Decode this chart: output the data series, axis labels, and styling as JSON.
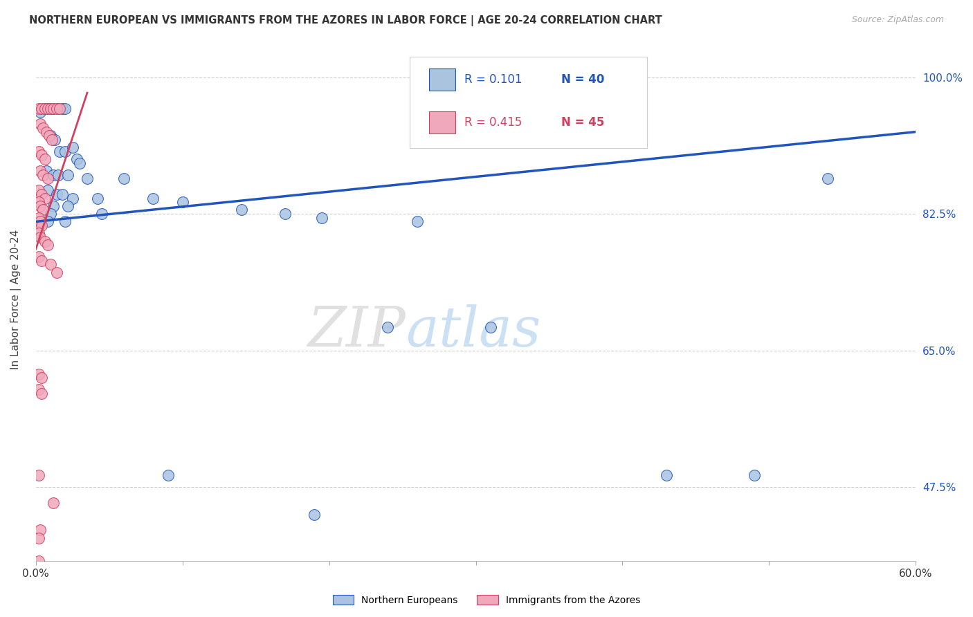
{
  "title": "NORTHERN EUROPEAN VS IMMIGRANTS FROM THE AZORES IN LABOR FORCE | AGE 20-24 CORRELATION CHART",
  "source": "Source: ZipAtlas.com",
  "ylabel": "In Labor Force | Age 20-24",
  "ytick_labels": [
    "100.0%",
    "82.5%",
    "65.0%",
    "47.5%"
  ],
  "ytick_values": [
    1.0,
    0.825,
    0.65,
    0.475
  ],
  "xmin": 0.0,
  "xmax": 0.6,
  "ymin": 0.38,
  "ymax": 1.05,
  "watermark": "ZIPatlas",
  "blue_color": "#aac4e0",
  "blue_line_color": "#2255bb",
  "pink_color": "#f0a8bc",
  "pink_line_color": "#d04060",
  "blue_scatter": [
    [
      0.003,
      0.955
    ],
    [
      0.006,
      0.96
    ],
    [
      0.008,
      0.96
    ],
    [
      0.01,
      0.96
    ],
    [
      0.012,
      0.96
    ],
    [
      0.015,
      0.96
    ],
    [
      0.018,
      0.96
    ],
    [
      0.02,
      0.96
    ],
    [
      0.01,
      0.925
    ],
    [
      0.013,
      0.92
    ],
    [
      0.016,
      0.905
    ],
    [
      0.02,
      0.905
    ],
    [
      0.025,
      0.91
    ],
    [
      0.028,
      0.895
    ],
    [
      0.03,
      0.89
    ],
    [
      0.007,
      0.88
    ],
    [
      0.012,
      0.875
    ],
    [
      0.015,
      0.875
    ],
    [
      0.022,
      0.875
    ],
    [
      0.035,
      0.87
    ],
    [
      0.06,
      0.87
    ],
    [
      0.008,
      0.855
    ],
    [
      0.014,
      0.85
    ],
    [
      0.018,
      0.85
    ],
    [
      0.025,
      0.845
    ],
    [
      0.042,
      0.845
    ],
    [
      0.08,
      0.845
    ],
    [
      0.012,
      0.835
    ],
    [
      0.022,
      0.835
    ],
    [
      0.1,
      0.84
    ],
    [
      0.01,
      0.825
    ],
    [
      0.045,
      0.825
    ],
    [
      0.14,
      0.83
    ],
    [
      0.008,
      0.815
    ],
    [
      0.02,
      0.815
    ],
    [
      0.17,
      0.825
    ],
    [
      0.195,
      0.82
    ],
    [
      0.26,
      0.815
    ],
    [
      0.24,
      0.68
    ],
    [
      0.31,
      0.68
    ],
    [
      0.43,
      0.49
    ],
    [
      0.09,
      0.49
    ],
    [
      0.19,
      0.44
    ],
    [
      0.49,
      0.49
    ],
    [
      0.54,
      0.87
    ]
  ],
  "pink_scatter": [
    [
      0.002,
      0.96
    ],
    [
      0.004,
      0.96
    ],
    [
      0.006,
      0.96
    ],
    [
      0.008,
      0.96
    ],
    [
      0.01,
      0.96
    ],
    [
      0.012,
      0.96
    ],
    [
      0.014,
      0.96
    ],
    [
      0.016,
      0.96
    ],
    [
      0.003,
      0.94
    ],
    [
      0.005,
      0.935
    ],
    [
      0.007,
      0.93
    ],
    [
      0.009,
      0.925
    ],
    [
      0.011,
      0.92
    ],
    [
      0.002,
      0.905
    ],
    [
      0.004,
      0.9
    ],
    [
      0.006,
      0.895
    ],
    [
      0.003,
      0.88
    ],
    [
      0.005,
      0.875
    ],
    [
      0.008,
      0.87
    ],
    [
      0.002,
      0.855
    ],
    [
      0.004,
      0.85
    ],
    [
      0.006,
      0.845
    ],
    [
      0.002,
      0.84
    ],
    [
      0.003,
      0.835
    ],
    [
      0.005,
      0.83
    ],
    [
      0.002,
      0.82
    ],
    [
      0.003,
      0.815
    ],
    [
      0.004,
      0.81
    ],
    [
      0.002,
      0.8
    ],
    [
      0.003,
      0.795
    ],
    [
      0.006,
      0.79
    ],
    [
      0.008,
      0.785
    ],
    [
      0.002,
      0.77
    ],
    [
      0.004,
      0.765
    ],
    [
      0.01,
      0.76
    ],
    [
      0.014,
      0.75
    ],
    [
      0.002,
      0.62
    ],
    [
      0.004,
      0.615
    ],
    [
      0.002,
      0.6
    ],
    [
      0.004,
      0.595
    ],
    [
      0.002,
      0.49
    ],
    [
      0.003,
      0.42
    ],
    [
      0.002,
      0.41
    ],
    [
      0.012,
      0.455
    ],
    [
      0.002,
      0.38
    ]
  ],
  "blue_trend_x": [
    0.0,
    0.6
  ],
  "blue_trend_y": [
    0.815,
    0.93
  ],
  "pink_trend_x": [
    0.0,
    0.035
  ],
  "pink_trend_y": [
    0.78,
    0.98
  ]
}
